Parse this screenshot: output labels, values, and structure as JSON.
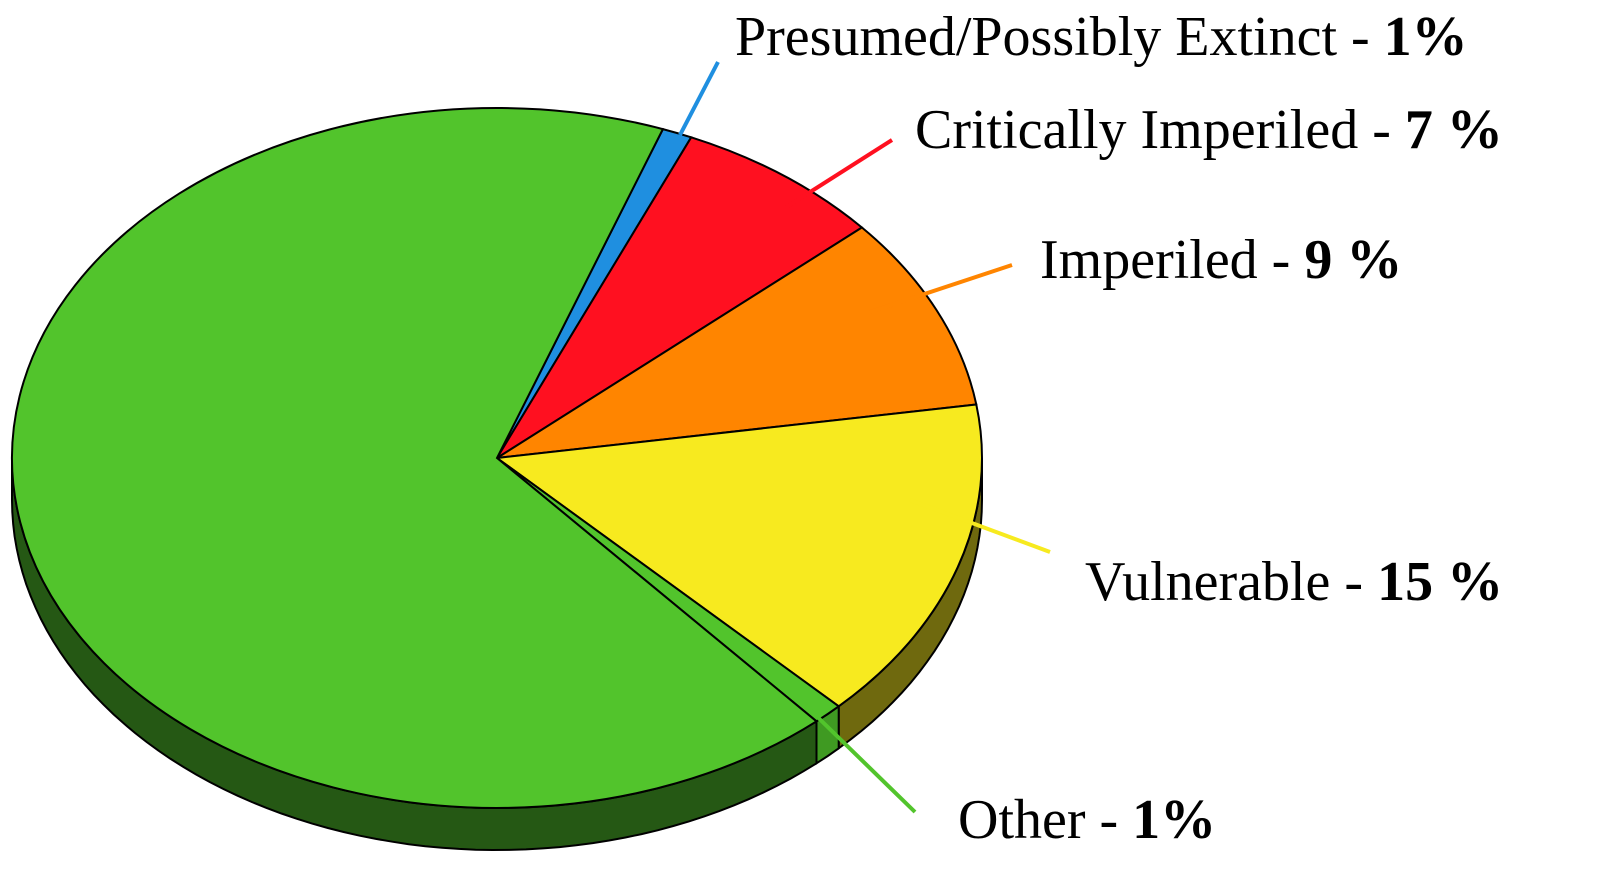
{
  "chart_data": {
    "type": "pie",
    "categories": [
      "Presumed/Possibly Extinct -",
      "Critically Imperiled -",
      "Imperiled -",
      "Vulnerable -",
      "Other -",
      null
    ],
    "values": [
      1,
      7,
      9,
      15,
      1,
      67
    ],
    "value_labels": [
      "1%",
      "7 %",
      "9 %",
      "15 %",
      "1%",
      null
    ],
    "colors": [
      "#1f8fe0",
      "#ff1020",
      "#ff8500",
      "#f7ea1f",
      "#52c42c",
      "#52c42c"
    ]
  }
}
